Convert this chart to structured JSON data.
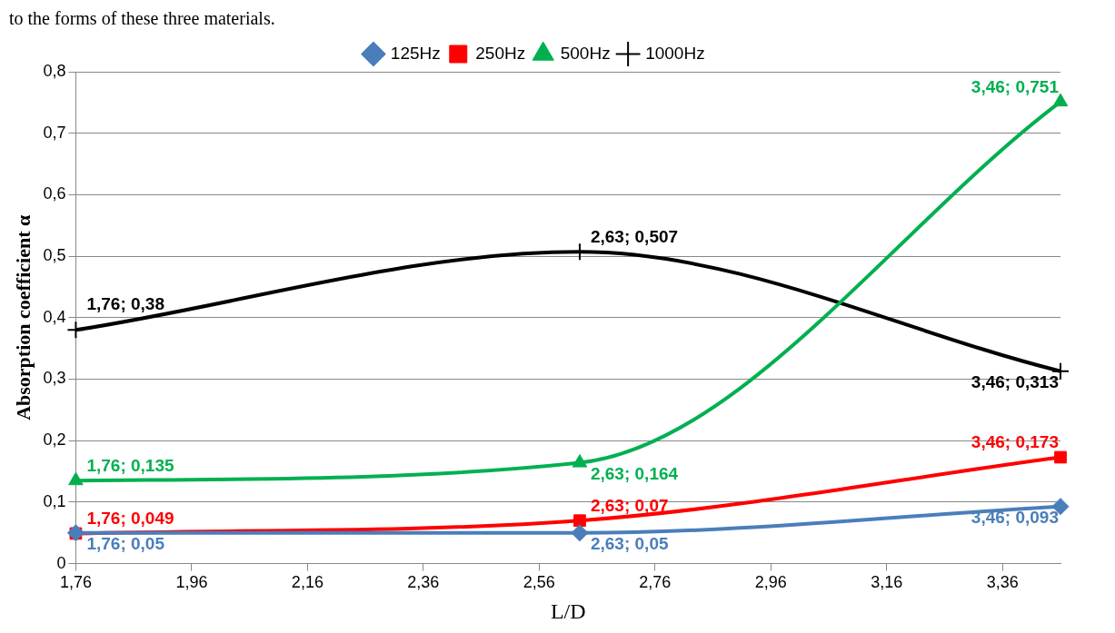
{
  "chart_data": {
    "type": "line",
    "xlabel": "L/D",
    "ylabel": "Absorption coefficient α",
    "annotations": [
      "to the forms of these three materials."
    ],
    "x": [
      1.76,
      2.63,
      3.46
    ],
    "xlim": [
      1.76,
      3.46
    ],
    "xticks": [
      {
        "value": 1.76,
        "label": "1,76"
      },
      {
        "value": 1.96,
        "label": "1,96"
      },
      {
        "value": 2.16,
        "label": "2,16"
      },
      {
        "value": 2.36,
        "label": "2,36"
      },
      {
        "value": 2.56,
        "label": "2,56"
      },
      {
        "value": 2.76,
        "label": "2,76"
      },
      {
        "value": 2.96,
        "label": "2,96"
      },
      {
        "value": 3.16,
        "label": "3,16"
      },
      {
        "value": 3.36,
        "label": "3,36"
      }
    ],
    "ylim": [
      0,
      0.8
    ],
    "yticks": [
      0,
      {
        "value": 0.1,
        "label": "0,1"
      },
      {
        "value": 0.2,
        "label": "0,2"
      },
      {
        "value": 0.3,
        "label": "0,3"
      },
      {
        "value": 0.4,
        "label": "0,4"
      },
      {
        "value": 0.5,
        "label": "0,5"
      },
      {
        "value": 0.6,
        "label": "0,6"
      },
      {
        "value": 0.7,
        "label": "0,7"
      },
      {
        "value": 0.8,
        "label": "0,8"
      }
    ],
    "grid": "y",
    "legend": "top",
    "series": [
      {
        "name": "125Hz",
        "color": "#4a7ebb",
        "marker": "diamond",
        "values": [
          0.05,
          0.05,
          0.093
        ],
        "value_labels": [
          "1,76; 0,05",
          "2,63; 0,05",
          "3,46; 0,093"
        ]
      },
      {
        "name": "250Hz",
        "color": "#ff0000",
        "marker": "square",
        "values": [
          0.049,
          0.07,
          0.173
        ],
        "value_labels": [
          "1,76; 0,049",
          "2,63; 0,07",
          "3,46; 0,173"
        ]
      },
      {
        "name": "500Hz",
        "color": "#00b050",
        "marker": "triangle",
        "values": [
          0.135,
          0.164,
          0.751
        ],
        "value_labels": [
          "1,76; 0,135",
          "2,63; 0,164",
          "3,46; 0,751"
        ]
      },
      {
        "name": "1000Hz",
        "color": "#000000",
        "marker": "cross",
        "values": [
          0.38,
          0.507,
          0.313
        ],
        "value_labels": [
          "1,76; 0,38",
          "2,63; 0,507",
          "3,46; 0,313"
        ]
      }
    ]
  }
}
